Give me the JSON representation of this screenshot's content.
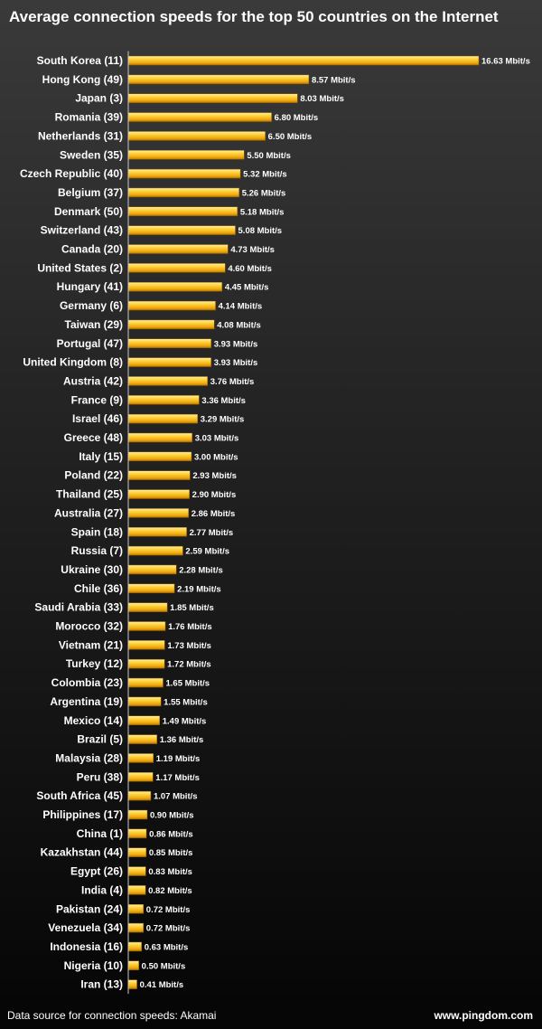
{
  "title": "Average connection speeds for the top 50 countries on the Internet",
  "footer": {
    "source": "Data source for connection speeds: Akamai",
    "site": "www.pingdom.com"
  },
  "colors": {
    "bar_light": "#ffdf6a",
    "bar_mid": "#f5b516",
    "bar_dark": "#c98600",
    "axis": "#c8c8c8"
  },
  "chart_data": {
    "type": "bar",
    "orientation": "horizontal",
    "unit_suffix": " Mbit/s",
    "grid": false,
    "categories": [
      "South Korea (11)",
      "Hong Kong (49)",
      "Japan (3)",
      "Romania (39)",
      "Netherlands (31)",
      "Sweden (35)",
      "Czech Republic (40)",
      "Belgium (37)",
      "Denmark (50)",
      "Switzerland (43)",
      "Canada (20)",
      "United States (2)",
      "Hungary (41)",
      "Germany (6)",
      "Taiwan (29)",
      "Portugal (47)",
      "United Kingdom (8)",
      "Austria (42)",
      "France (9)",
      "Israel (46)",
      "Greece (48)",
      "Italy (15)",
      "Poland (22)",
      "Thailand (25)",
      "Australia (27)",
      "Spain (18)",
      "Russia (7)",
      "Ukraine (30)",
      "Chile (36)",
      "Saudi Arabia (33)",
      "Morocco (32)",
      "Vietnam (21)",
      "Turkey (12)",
      "Colombia (23)",
      "Argentina (19)",
      "Mexico (14)",
      "Brazil (5)",
      "Malaysia (28)",
      "Peru (38)",
      "South Africa (45)",
      "Philippines (17)",
      "China (1)",
      "Kazakhstan (44)",
      "Egypt (26)",
      "India (4)",
      "Pakistan (24)",
      "Venezuela (34)",
      "Indonesia (16)",
      "Nigeria (10)",
      "Iran (13)"
    ],
    "values": [
      16.63,
      8.57,
      8.03,
      6.8,
      6.5,
      5.5,
      5.32,
      5.26,
      5.18,
      5.08,
      4.73,
      4.6,
      4.45,
      4.14,
      4.08,
      3.93,
      3.93,
      3.76,
      3.36,
      3.29,
      3.03,
      3.0,
      2.93,
      2.9,
      2.86,
      2.77,
      2.59,
      2.28,
      2.19,
      1.85,
      1.76,
      1.73,
      1.72,
      1.65,
      1.55,
      1.49,
      1.36,
      1.19,
      1.17,
      1.07,
      0.9,
      0.86,
      0.85,
      0.83,
      0.82,
      0.72,
      0.72,
      0.63,
      0.5,
      0.41
    ],
    "value_labels": [
      "16.63 Mbit/s",
      "8.57 Mbit/s",
      "8.03 Mbit/s",
      "6.80 Mbit/s",
      "6.50 Mbit/s",
      "5.50 Mbit/s",
      "5.32 Mbit/s",
      "5.26 Mbit/s",
      "5.18 Mbit/s",
      "5.08 Mbit/s",
      "4.73 Mbit/s",
      "4.60 Mbit/s",
      "4.45 Mbit/s",
      "4.14 Mbit/s",
      "4.08 Mbit/s",
      "3.93 Mbit/s",
      "3.93 Mbit/s",
      "3.76 Mbit/s",
      "3.36 Mbit/s",
      "3.29 Mbit/s",
      "3.03 Mbit/s",
      "3.00 Mbit/s",
      "2.93 Mbit/s",
      "2.90 Mbit/s",
      "2.86 Mbit/s",
      "2.77 Mbit/s",
      "2.59 Mbit/s",
      "2.28 Mbit/s",
      "2.19 Mbit/s",
      "1.85 Mbit/s",
      "1.76 Mbit/s",
      "1.73 Mbit/s",
      "1.72 Mbit/s",
      "1.65 Mbit/s",
      "1.55 Mbit/s",
      "1.49 Mbit/s",
      "1.36 Mbit/s",
      "1.19 Mbit/s",
      "1.17 Mbit/s",
      "1.07 Mbit/s",
      "0.90 Mbit/s",
      "0.86 Mbit/s",
      "0.85 Mbit/s",
      "0.83 Mbit/s",
      "0.82 Mbit/s",
      "0.72 Mbit/s",
      "0.72 Mbit/s",
      "0.63 Mbit/s",
      "0.50 Mbit/s",
      "0.41 Mbit/s"
    ]
  }
}
